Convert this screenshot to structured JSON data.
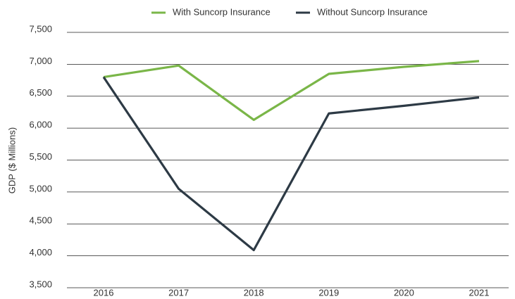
{
  "chart_data": {
    "type": "line",
    "y_label": "GDP ($ Millions)",
    "categories": [
      "2016",
      "2017",
      "2018",
      "2019",
      "2020",
      "2021"
    ],
    "series": [
      {
        "name": "With Suncorp Insurance",
        "color": "#7ab648",
        "values": [
          6800,
          6980,
          6130,
          6850,
          6960,
          7050
        ]
      },
      {
        "name": "Without Suncorp Insurance",
        "color": "#2d3a45",
        "values": [
          6800,
          5050,
          4090,
          6230,
          6350,
          6480
        ]
      }
    ],
    "ylim": [
      3500,
      7500
    ],
    "yticks": [
      {
        "value": 3500,
        "label": "3,500"
      },
      {
        "value": 4000,
        "label": "4,000"
      },
      {
        "value": 4500,
        "label": "4,500"
      },
      {
        "value": 5000,
        "label": "5,000"
      },
      {
        "value": 5500,
        "label": "5,500"
      },
      {
        "value": 6000,
        "label": "6,000"
      },
      {
        "value": 6500,
        "label": "6,500"
      },
      {
        "value": 7000,
        "label": "7,000"
      },
      {
        "value": 7500,
        "label": "7,500"
      }
    ],
    "grid": true,
    "legend": "top"
  }
}
